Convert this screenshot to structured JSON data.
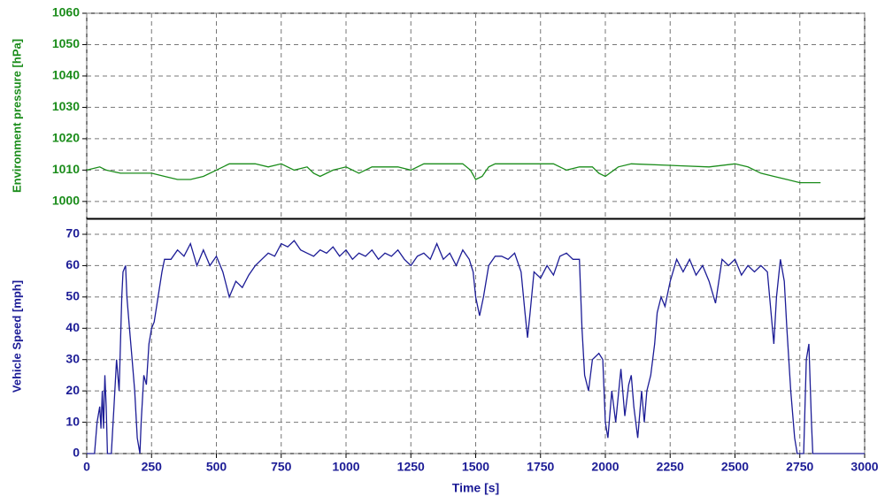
{
  "chart_data": [
    {
      "type": "line",
      "ylabel": "Environment pressure [hPa]",
      "label_color": "#1a8c1a",
      "xlim": [
        0,
        3000
      ],
      "xticks": [
        0,
        250,
        500,
        750,
        1000,
        1250,
        1500,
        1750,
        2000,
        2250,
        2500,
        2750,
        3000
      ],
      "ylim": [
        994.6,
        1060
      ],
      "yticks": [
        1000,
        1010,
        1020,
        1030,
        1040,
        1050,
        1060
      ],
      "grid": true,
      "x": [
        0,
        50,
        75,
        130,
        200,
        250,
        300,
        350,
        400,
        450,
        500,
        550,
        650,
        700,
        750,
        800,
        850,
        875,
        900,
        950,
        1000,
        1050,
        1100,
        1200,
        1250,
        1300,
        1450,
        1480,
        1500,
        1525,
        1550,
        1575,
        1800,
        1850,
        1900,
        1950,
        1975,
        2000,
        2050,
        2100,
        2400,
        2500,
        2550,
        2600,
        2650,
        2700,
        2750,
        2830
      ],
      "series": [
        {
          "color": "#1a8c1a",
          "values": [
            1010,
            1011,
            1010,
            1009,
            1009,
            1009,
            1008,
            1007,
            1007,
            1008,
            1010,
            1012,
            1012,
            1011,
            1012,
            1010,
            1011,
            1009,
            1008,
            1010,
            1011,
            1009,
            1011,
            1011,
            1010,
            1012,
            1012,
            1010,
            1007,
            1008,
            1011,
            1012,
            1012,
            1010,
            1011,
            1011,
            1009,
            1008,
            1011,
            1012,
            1011,
            1012,
            1011,
            1009,
            1008,
            1007,
            1006,
            1006
          ]
        }
      ]
    },
    {
      "type": "line",
      "ylabel": "Vehicle Speed [mph]",
      "xlabel": "Time [s]",
      "label_color": "#1c1c96",
      "xlim": [
        0,
        3000
      ],
      "xticks": [
        0,
        250,
        500,
        750,
        1000,
        1250,
        1500,
        1750,
        2000,
        2250,
        2500,
        2750,
        3000
      ],
      "ylim": [
        0,
        74.8
      ],
      "yticks": [
        0,
        10,
        20,
        30,
        40,
        50,
        60,
        70
      ],
      "grid": true,
      "x": [
        0,
        30,
        40,
        50,
        55,
        60,
        65,
        70,
        75,
        80,
        95,
        105,
        115,
        125,
        135,
        140,
        150,
        155,
        165,
        175,
        185,
        195,
        205,
        210,
        220,
        230,
        240,
        250,
        260,
        275,
        290,
        300,
        325,
        350,
        375,
        400,
        425,
        450,
        475,
        500,
        525,
        550,
        575,
        600,
        625,
        650,
        675,
        700,
        725,
        750,
        775,
        800,
        825,
        850,
        875,
        900,
        925,
        950,
        975,
        1000,
        1025,
        1050,
        1075,
        1100,
        1125,
        1150,
        1175,
        1200,
        1225,
        1250,
        1275,
        1300,
        1325,
        1350,
        1375,
        1400,
        1425,
        1450,
        1475,
        1490,
        1500,
        1515,
        1530,
        1550,
        1575,
        1600,
        1625,
        1650,
        1675,
        1690,
        1700,
        1710,
        1725,
        1750,
        1775,
        1800,
        1825,
        1850,
        1875,
        1900,
        1910,
        1920,
        1935,
        1950,
        1975,
        1990,
        2000,
        2010,
        2025,
        2040,
        2060,
        2075,
        2090,
        2100,
        2110,
        2125,
        2140,
        2150,
        2160,
        2175,
        2190,
        2200,
        2215,
        2230,
        2250,
        2275,
        2300,
        2325,
        2350,
        2375,
        2400,
        2425,
        2450,
        2475,
        2500,
        2525,
        2550,
        2575,
        2600,
        2625,
        2650,
        2660,
        2675,
        2690,
        2700,
        2715,
        2730,
        2740,
        2765,
        2775,
        2785,
        2795,
        2800,
        3000
      ],
      "series": [
        {
          "color": "#1c1c96",
          "values": [
            0,
            0,
            10,
            15,
            8,
            20,
            8,
            25,
            15,
            0,
            0,
            15,
            30,
            20,
            50,
            58,
            60,
            50,
            40,
            30,
            20,
            5,
            0,
            10,
            25,
            22,
            35,
            40,
            42,
            50,
            58,
            62,
            62,
            65,
            63,
            67,
            60,
            65,
            60,
            63,
            58,
            50,
            55,
            53,
            57,
            60,
            62,
            64,
            63,
            67,
            66,
            68,
            65,
            64,
            63,
            65,
            64,
            66,
            63,
            65,
            62,
            64,
            63,
            65,
            62,
            64,
            63,
            65,
            62,
            60,
            63,
            64,
            62,
            67,
            62,
            64,
            60,
            65,
            62,
            58,
            50,
            44,
            50,
            60,
            63,
            63,
            62,
            64,
            58,
            45,
            37,
            45,
            58,
            56,
            60,
            57,
            63,
            64,
            62,
            62,
            40,
            25,
            20,
            30,
            32,
            30,
            10,
            5,
            20,
            10,
            27,
            12,
            22,
            25,
            15,
            5,
            20,
            10,
            20,
            25,
            35,
            45,
            50,
            47,
            55,
            62,
            58,
            62,
            57,
            60,
            55,
            48,
            62,
            60,
            62,
            57,
            60,
            58,
            60,
            58,
            35,
            50,
            62,
            55,
            40,
            20,
            5,
            0,
            0,
            30,
            35,
            10,
            0,
            0
          ]
        }
      ]
    }
  ]
}
